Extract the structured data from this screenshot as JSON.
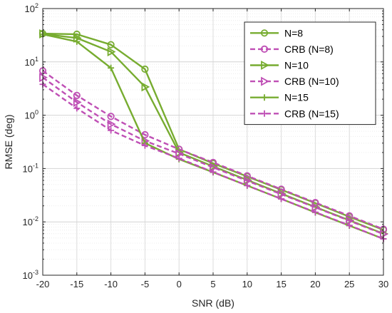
{
  "chart_data": {
    "type": "line",
    "xlabel": "SNR (dB)",
    "ylabel": "RMSE (deg)",
    "x": [
      -20,
      -15,
      -10,
      -5,
      0,
      5,
      10,
      15,
      20,
      25,
      30
    ],
    "xlim": [
      -20,
      30
    ],
    "ylim": [
      0.001,
      100
    ],
    "yscale": "log",
    "x_ticks": [
      "-20",
      "-15",
      "-10",
      "-5",
      "0",
      "5",
      "10",
      "15",
      "20",
      "25",
      "30"
    ],
    "y_ticks": [
      {
        "base": "10",
        "exp": "-3"
      },
      {
        "base": "10",
        "exp": "-2"
      },
      {
        "base": "10",
        "exp": "-1"
      },
      {
        "base": "10",
        "exp": "0"
      },
      {
        "base": "10",
        "exp": "1"
      },
      {
        "base": "10",
        "exp": "2"
      }
    ],
    "grid": true,
    "legend_position": "top-right",
    "colors": {
      "estimator": "#77AC30",
      "crb": "#BF4FB5"
    },
    "series": [
      {
        "name": "N=8",
        "color": "#77AC30",
        "dash": false,
        "marker": "circle",
        "values": [
          34,
          33,
          21,
          7.3,
          0.23,
          0.125,
          0.071,
          0.04,
          0.0225,
          0.0125,
          0.0071
        ]
      },
      {
        "name": "CRB (N=8)",
        "color": "#BF4FB5",
        "dash": true,
        "marker": "circle",
        "values": [
          6.8,
          2.35,
          0.95,
          0.43,
          0.23,
          0.13,
          0.073,
          0.041,
          0.023,
          0.013,
          0.0073
        ]
      },
      {
        "name": "N=10",
        "color": "#77AC30",
        "dash": false,
        "marker": "triangle-right",
        "values": [
          33.5,
          28,
          15.5,
          3.4,
          0.2,
          0.11,
          0.061,
          0.034,
          0.019,
          0.0107,
          0.006
        ]
      },
      {
        "name": "CRB (N=10)",
        "color": "#BF4FB5",
        "dash": true,
        "marker": "triangle-right",
        "values": [
          5.1,
          1.75,
          0.68,
          0.33,
          0.19,
          0.105,
          0.059,
          0.033,
          0.0187,
          0.0105,
          0.0059
        ]
      },
      {
        "name": "N=15",
        "color": "#77AC30",
        "dash": false,
        "marker": "plus",
        "values": [
          33,
          24,
          7.7,
          0.3,
          0.15,
          0.085,
          0.048,
          0.027,
          0.015,
          0.0085,
          0.0048
        ]
      },
      {
        "name": "CRB (N=15)",
        "color": "#BF4FB5",
        "dash": true,
        "marker": "plus",
        "values": [
          3.8,
          1.35,
          0.52,
          0.27,
          0.155,
          0.086,
          0.048,
          0.027,
          0.0152,
          0.0086,
          0.0048
        ]
      }
    ]
  }
}
